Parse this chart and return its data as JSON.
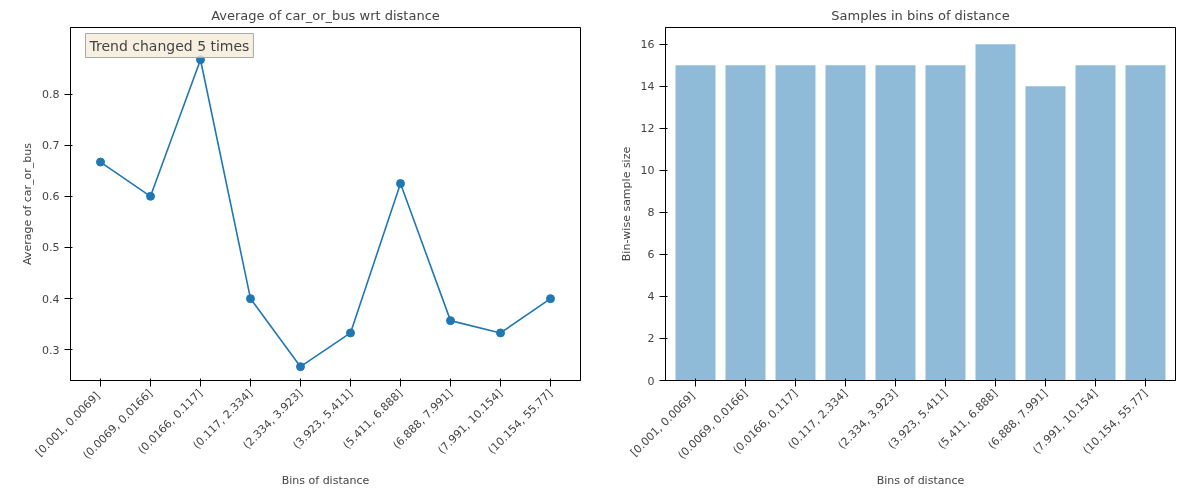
{
  "chart_data": [
    {
      "type": "line",
      "title": "Average of car_or_bus wrt distance",
      "xlabel": "Bins of distance",
      "ylabel": "Average of car_or_bus",
      "categories": [
        "[0.001,  0.0069]",
        "(0.0069, 0.0166]",
        "(0.0166, 0.117]",
        "(0.117, 2.334]",
        "(2.334, 3.923]",
        "(3.923, 5.411]",
        "(5.411, 6.888]",
        "(6.888, 7.991]",
        "(7.991, 10.154]",
        "(10.154, 55.77]"
      ],
      "series": [
        {
          "color": "#1f77b4",
          "values": [
            0.667,
            0.6,
            0.867,
            0.4,
            0.267,
            0.333,
            0.625,
            0.357,
            0.333,
            0.4
          ]
        }
      ],
      "ylim": [
        0.24,
        0.93
      ],
      "yticks": [
        0.3,
        0.4,
        0.5,
        0.6,
        0.7,
        0.8
      ],
      "marker": "circle",
      "grid": false,
      "annotations": [
        "Trend changed 5 times"
      ]
    },
    {
      "type": "bar",
      "title": "Samples in bins of distance",
      "xlabel": "Bins of distance",
      "ylabel": "Bin-wise sample size",
      "categories": [
        "[0.001,  0.0069]",
        "(0.0069, 0.0166]",
        "(0.0166, 0.117]",
        "(0.117, 2.334]",
        "(2.334, 3.923]",
        "(3.923, 5.411]",
        "(5.411, 6.888]",
        "(6.888, 7.991]",
        "(7.991, 10.154]",
        "(10.154, 55.77]"
      ],
      "series": [
        {
          "color": "#8fbbd9",
          "values": [
            15,
            15,
            15,
            15,
            15,
            15,
            16,
            14,
            15,
            15
          ]
        }
      ],
      "ylim": [
        0,
        16.8
      ],
      "yticks": [
        0,
        2,
        4,
        6,
        8,
        10,
        12,
        14,
        16
      ],
      "grid": false
    }
  ]
}
